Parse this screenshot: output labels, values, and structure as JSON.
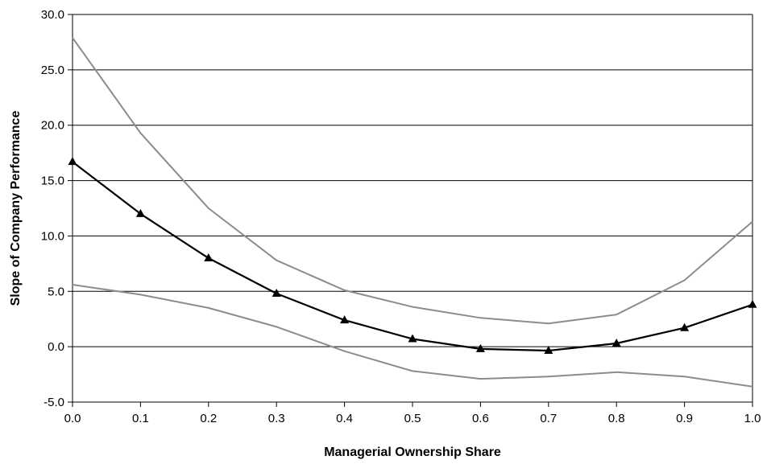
{
  "chart_data": {
    "type": "line",
    "title": "",
    "xlabel": "Managerial Ownership Share",
    "ylabel": "Slope of Company Performance",
    "x": [
      0.0,
      0.1,
      0.2,
      0.3,
      0.4,
      0.5,
      0.6,
      0.7,
      0.8,
      0.9,
      1.0
    ],
    "x_ticks": [
      "0.0",
      "0.1",
      "0.2",
      "0.3",
      "0.4",
      "0.5",
      "0.6",
      "0.7",
      "0.8",
      "0.9",
      "1.0"
    ],
    "y_ticks": [
      "30.0",
      "25.0",
      "20.0",
      "15.0",
      "10.0",
      "5.0",
      "0.0",
      "-5.0"
    ],
    "y_tick_values": [
      30,
      25,
      20,
      15,
      10,
      5,
      0,
      -5
    ],
    "xlim": [
      0.0,
      1.0
    ],
    "ylim": [
      -5.0,
      30.0
    ],
    "grid": "horizontal",
    "legend": "none",
    "series": [
      {
        "role": "estimate",
        "color": "#000000",
        "marker": "triangle",
        "values": [
          16.7,
          12.0,
          8.0,
          4.8,
          2.4,
          0.7,
          -0.2,
          -0.35,
          0.3,
          1.7,
          3.8
        ]
      },
      {
        "role": "upper",
        "color": "#8c8c8c",
        "marker": "none",
        "values": [
          27.9,
          19.3,
          12.5,
          7.8,
          5.1,
          3.6,
          2.6,
          2.1,
          2.9,
          6.0,
          11.3
        ]
      },
      {
        "role": "lower",
        "color": "#8c8c8c",
        "marker": "none",
        "values": [
          5.6,
          4.7,
          3.5,
          1.8,
          -0.4,
          -2.2,
          -2.9,
          -2.7,
          -2.3,
          -2.7,
          -3.6
        ]
      }
    ]
  }
}
